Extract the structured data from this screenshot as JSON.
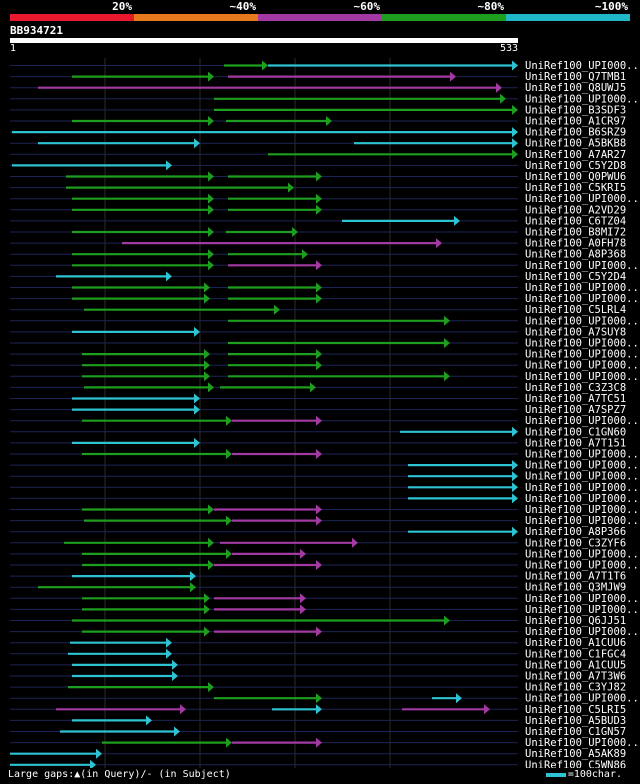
{
  "legend": {
    "labels": [
      "20%",
      "~40%",
      "~60%",
      "~80%",
      "~100%"
    ],
    "colors": [
      "#e8192c",
      "#e87a1e",
      "#a33aa3",
      "#1e9e1e",
      "#20b8c8"
    ]
  },
  "query": {
    "name": "BB934721",
    "start": "1",
    "end": "533",
    "length": 533
  },
  "hit_names": [
    "UniRef100_UPI000..",
    "UniRef100_Q7TMB1",
    "UniRef100_Q8UWJ5",
    "UniRef100_UPI000..",
    "UniRef100_B3SDF3",
    "UniRef100_A1CR97",
    "UniRef100_B6SRZ9",
    "UniRef100_A5BKB8",
    "UniRef100_A7AR27",
    "UniRef100_C5Y2D8",
    "UniRef100_Q0PWU6",
    "UniRef100_C5KRI5",
    "UniRef100_UPI000..",
    "UniRef100_A2VD29",
    "UniRef100_C6TZ04",
    "UniRef100_B8MI72",
    "UniRef100_A0FH78",
    "UniRef100_A8P368",
    "UniRef100_UPI000..",
    "UniRef100_C5Y2D4",
    "UniRef100_UPI000..",
    "UniRef100_UPI000..",
    "UniRef100_C5LRL4",
    "UniRef100_UPI000..",
    "UniRef100_A7SUY8",
    "UniRef100_UPI000..",
    "UniRef100_UPI000..",
    "UniRef100_UPI000..",
    "UniRef100_UPI000..",
    "UniRef100_C3Z3C8",
    "UniRef100_A7TC51",
    "UniRef100_A7SPZ7",
    "UniRef100_UPI000..",
    "UniRef100_C1GN60",
    "UniRef100_A7T151",
    "UniRef100_UPI000..",
    "UniRef100_UPI000..",
    "UniRef100_UPI000..",
    "UniRef100_UPI000..",
    "UniRef100_UPI000..",
    "UniRef100_UPI000..",
    "UniRef100_UPI000..",
    "UniRef100_A8P366",
    "UniRef100_C3ZYF6",
    "UniRef100_UPI000..",
    "UniRef100_UPI000..",
    "UniRef100_A7T1T6",
    "UniRef100_Q3MJW9",
    "UniRef100_UPI000..",
    "UniRef100_UPI000..",
    "UniRef100_Q6JJ51",
    "UniRef100_UPI000..",
    "UniRef100_A1CUU6",
    "UniRef100_C1FGC4",
    "UniRef100_A1CUU5",
    "UniRef100_A7T3W6",
    "UniRef100_C3YJ82",
    "UniRef100_UPI000..",
    "UniRef100_C5LRI5",
    "UniRef100_A5BUD3",
    "UniRef100_C1GN57",
    "UniRef100_UPI000..",
    "UniRef100_A5AK89",
    "UniRef100_C5WN86"
  ],
  "footer": {
    "gaps_text": "Large gaps:▲(in Query)/- (in Subject)",
    "scale_text": "=100char."
  }
}
